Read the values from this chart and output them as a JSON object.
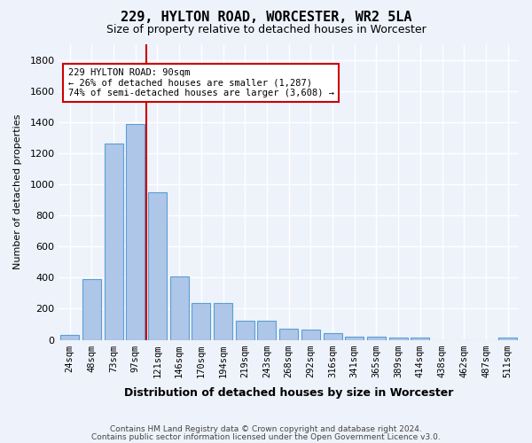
{
  "title": "229, HYLTON ROAD, WORCESTER, WR2 5LA",
  "subtitle": "Size of property relative to detached houses in Worcester",
  "xlabel": "Distribution of detached houses by size in Worcester",
  "ylabel": "Number of detached properties",
  "footer1": "Contains HM Land Registry data © Crown copyright and database right 2024.",
  "footer2": "Contains public sector information licensed under the Open Government Licence v3.0.",
  "categories": [
    "24sqm",
    "48sqm",
    "73sqm",
    "97sqm",
    "121sqm",
    "146sqm",
    "170sqm",
    "194sqm",
    "219sqm",
    "243sqm",
    "268sqm",
    "292sqm",
    "316sqm",
    "341sqm",
    "365sqm",
    "389sqm",
    "414sqm",
    "438sqm",
    "462sqm",
    "487sqm",
    "511sqm"
  ],
  "values": [
    30,
    390,
    1260,
    1390,
    950,
    410,
    235,
    235,
    120,
    120,
    70,
    65,
    45,
    20,
    20,
    15,
    15,
    0,
    0,
    0,
    15
  ],
  "bar_color": "#aec6e8",
  "bar_edge_color": "#5a9fd4",
  "bg_color": "#eef2fb",
  "grid_color": "#ffffff",
  "vline_x": 3.5,
  "vline_color": "#cc0000",
  "annotation_text": "229 HYLTON ROAD: 90sqm\n← 26% of detached houses are smaller (1,287)\n74% of semi-detached houses are larger (3,608) →",
  "annotation_box_color": "#ffffff",
  "annotation_box_edge": "#cc0000",
  "ylim": [
    0,
    1900
  ],
  "yticks": [
    0,
    200,
    400,
    600,
    800,
    1000,
    1200,
    1400,
    1600,
    1800
  ]
}
